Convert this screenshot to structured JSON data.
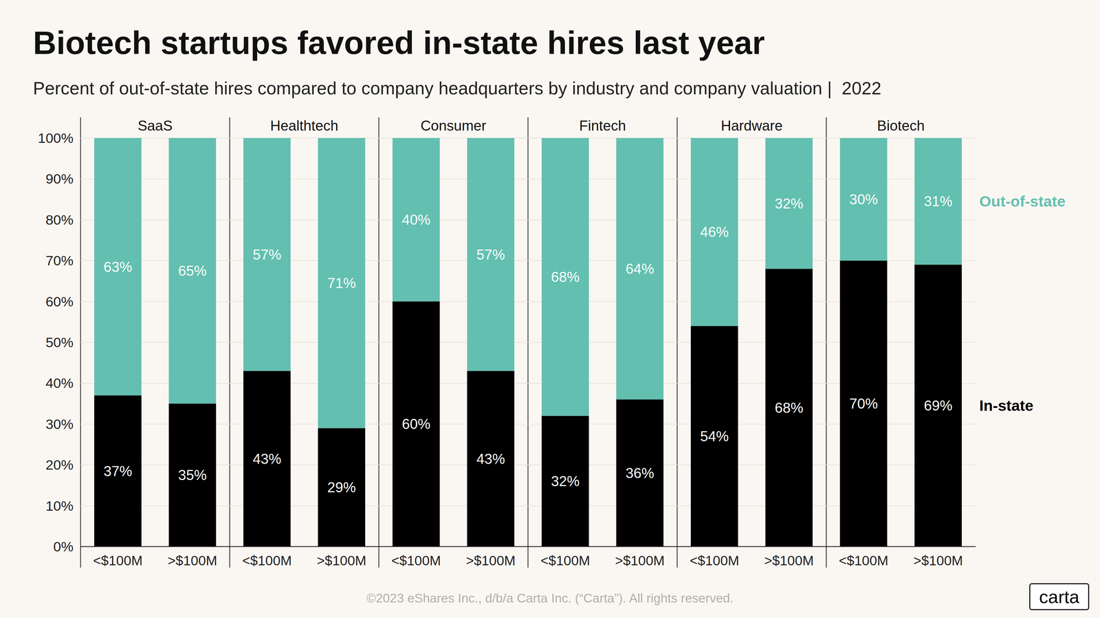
{
  "chart_data": {
    "type": "bar",
    "title": "Biotech startups favored in-state hires last year",
    "subtitle": "Percent of out-of-state hires compared to company headquarters by industry and company valuation |  2022",
    "stacked": true,
    "data_labels": true,
    "grid": true,
    "legend": "right",
    "ylim": [
      0,
      100
    ],
    "yticks": [
      {
        "value": 0,
        "label": "0%"
      },
      {
        "value": 10,
        "label": "10%"
      },
      {
        "value": 20,
        "label": "20%"
      },
      {
        "value": 30,
        "label": "30%"
      },
      {
        "value": 40,
        "label": "40%"
      },
      {
        "value": 50,
        "label": "50%"
      },
      {
        "value": 60,
        "label": "60%"
      },
      {
        "value": 70,
        "label": "70%"
      },
      {
        "value": 80,
        "label": "80%"
      },
      {
        "value": 90,
        "label": "90%"
      },
      {
        "value": 100,
        "label": "100%"
      }
    ],
    "panels": [
      {
        "title": "SaaS",
        "categories": [
          "<$100M",
          ">$100M"
        ],
        "series": [
          {
            "name": "In-state",
            "color": "#000000",
            "values": [
              37,
              35
            ],
            "value_labels": [
              "37%",
              "35%"
            ]
          },
          {
            "name": "Out-of-state",
            "color": "#63bfb0",
            "values": [
              63,
              65
            ],
            "value_labels": [
              "63%",
              "65%"
            ]
          }
        ]
      },
      {
        "title": "Healthtech",
        "categories": [
          "<$100M",
          ">$100M"
        ],
        "series": [
          {
            "name": "In-state",
            "color": "#000000",
            "values": [
              43,
              29
            ],
            "value_labels": [
              "43%",
              "29%"
            ]
          },
          {
            "name": "Out-of-state",
            "color": "#63bfb0",
            "values": [
              57,
              71
            ],
            "value_labels": [
              "57%",
              "71%"
            ]
          }
        ]
      },
      {
        "title": "Consumer",
        "categories": [
          "<$100M",
          ">$100M"
        ],
        "series": [
          {
            "name": "In-state",
            "color": "#000000",
            "values": [
              60,
              43
            ],
            "value_labels": [
              "60%",
              "43%"
            ]
          },
          {
            "name": "Out-of-state",
            "color": "#63bfb0",
            "values": [
              40,
              57
            ],
            "value_labels": [
              "40%",
              "57%"
            ]
          }
        ]
      },
      {
        "title": "Fintech",
        "categories": [
          "<$100M",
          ">$100M"
        ],
        "series": [
          {
            "name": "In-state",
            "color": "#000000",
            "values": [
              32,
              36
            ],
            "value_labels": [
              "32%",
              "36%"
            ]
          },
          {
            "name": "Out-of-state",
            "color": "#63bfb0",
            "values": [
              68,
              64
            ],
            "value_labels": [
              "68%",
              "64%"
            ]
          }
        ]
      },
      {
        "title": "Hardware",
        "categories": [
          "<$100M",
          ">$100M"
        ],
        "series": [
          {
            "name": "In-state",
            "color": "#000000",
            "values": [
              54,
              68
            ],
            "value_labels": [
              "54%",
              "68%"
            ]
          },
          {
            "name": "Out-of-state",
            "color": "#63bfb0",
            "values": [
              46,
              32
            ],
            "value_labels": [
              "46%",
              "32%"
            ]
          }
        ]
      },
      {
        "title": "Biotech",
        "categories": [
          "<$100M",
          ">$100M"
        ],
        "series": [
          {
            "name": "In-state",
            "color": "#000000",
            "values": [
              70,
              69
            ],
            "value_labels": [
              "70%",
              "69%"
            ]
          },
          {
            "name": "Out-of-state",
            "color": "#63bfb0",
            "values": [
              30,
              31
            ],
            "value_labels": [
              "30%",
              "31%"
            ]
          }
        ]
      }
    ],
    "footer": "©2023 eShares Inc., d/b/a Carta Inc. (“Carta”). All rights reserved.",
    "logo": "carta"
  }
}
